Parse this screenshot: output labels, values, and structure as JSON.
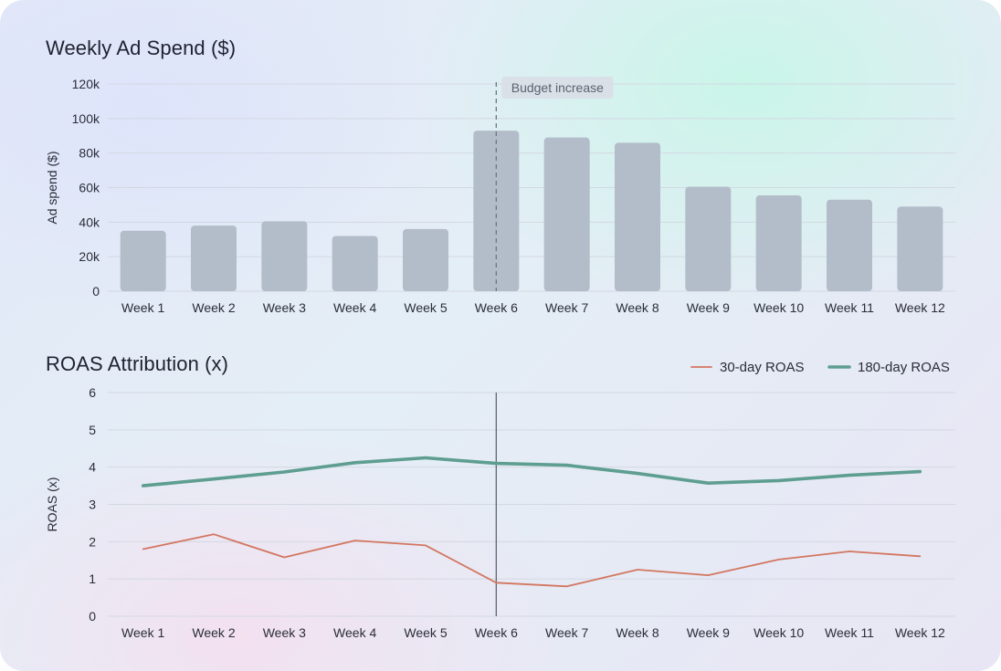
{
  "colors": {
    "bar": "#b3bdc9",
    "grid": "#d3d8e2",
    "axis_text": "#2a2d38",
    "series_30day": "#d37660",
    "series_180day": "#5e9e90",
    "marker_line_top": "#6f7684",
    "marker_line_bottom": "#5f6675",
    "annotation_bg": "#d9dee6",
    "annotation_text": "#5b6270"
  },
  "chart_data": [
    {
      "type": "bar",
      "title": "Weekly Ad Spend ($)",
      "ylabel": "Ad spend ($)",
      "xlabel": "",
      "categories": [
        "Week 1",
        "Week 2",
        "Week 3",
        "Week 4",
        "Week 5",
        "Week 6",
        "Week 7",
        "Week 8",
        "Week 9",
        "Week 10",
        "Week 11",
        "Week 12"
      ],
      "values": [
        35000,
        38000,
        40500,
        32000,
        36000,
        93000,
        89000,
        86000,
        60500,
        55500,
        53000,
        49000
      ],
      "ylim": [
        0,
        120000
      ],
      "yticks": [
        0,
        20000,
        40000,
        60000,
        80000,
        100000,
        120000
      ],
      "ytick_labels": [
        "0",
        "20k",
        "40k",
        "60k",
        "80k",
        "100k",
        "120k"
      ],
      "grid": true,
      "annotation": {
        "category": "Week 6",
        "text": "Budget increase",
        "style": "dashed-line"
      }
    },
    {
      "type": "line",
      "title": "ROAS Attribution (x)",
      "ylabel": "ROAS (x)",
      "xlabel": "",
      "categories": [
        "Week 1",
        "Week 2",
        "Week 3",
        "Week 4",
        "Week 5",
        "Week 6",
        "Week 7",
        "Week 8",
        "Week 9",
        "Week 10",
        "Week 11",
        "Week 12"
      ],
      "series": [
        {
          "name": "30-day ROAS",
          "values": [
            1.8,
            2.2,
            1.58,
            2.03,
            1.9,
            0.9,
            0.8,
            1.25,
            1.1,
            1.52,
            1.74,
            1.61
          ]
        },
        {
          "name": "180-day ROAS",
          "values": [
            3.5,
            3.68,
            3.87,
            4.12,
            4.25,
            4.1,
            4.05,
            3.83,
            3.57,
            3.64,
            3.78,
            3.88
          ]
        }
      ],
      "ylim": [
        0,
        6
      ],
      "yticks": [
        0,
        1,
        2,
        3,
        4,
        5,
        6
      ],
      "grid": true,
      "legend_position": "top-right",
      "marker_category": "Week 6"
    }
  ]
}
